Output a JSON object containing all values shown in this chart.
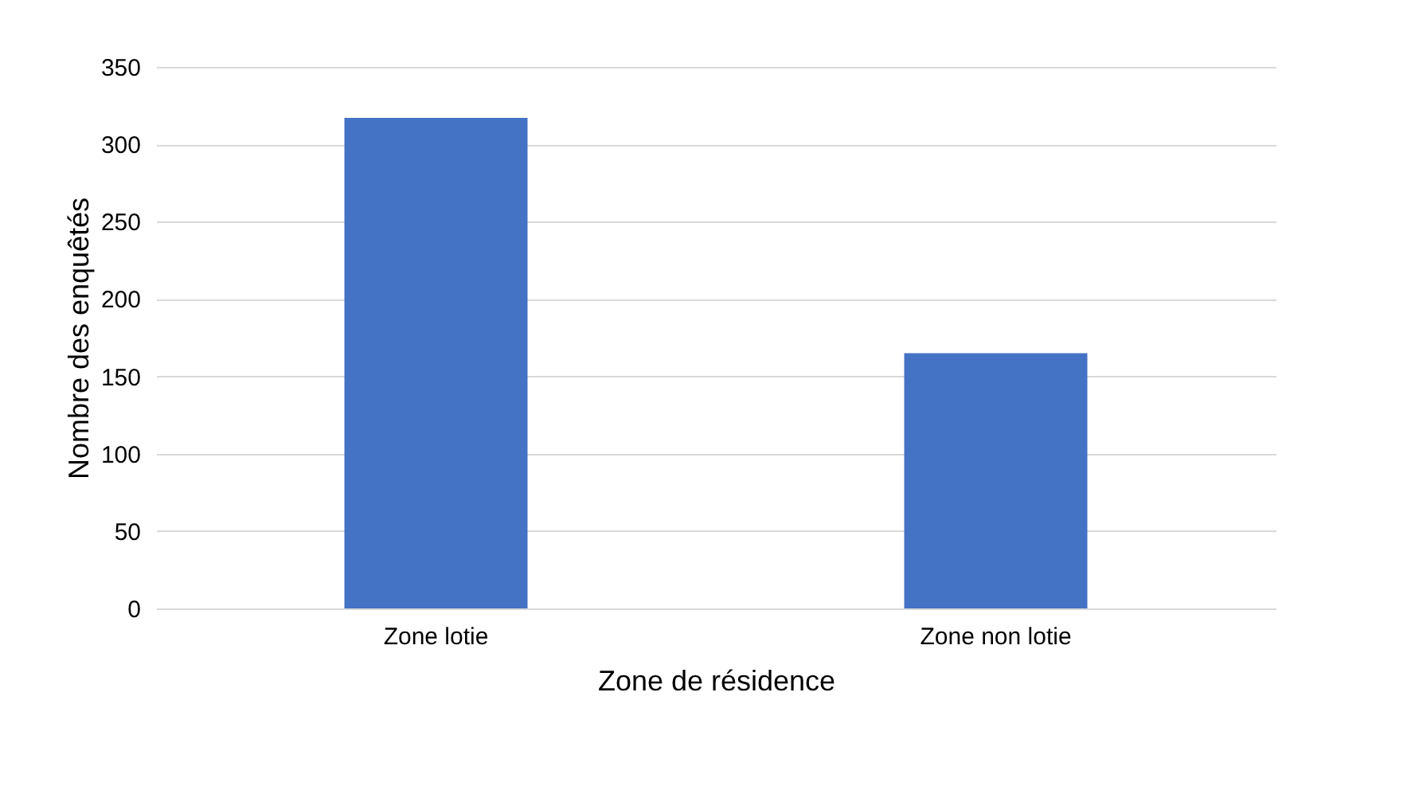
{
  "chart_data": {
    "type": "bar",
    "xlabel": "Zone de résidence",
    "ylabel": "Nombre des enquêtés",
    "categories": [
      "Zone lotie",
      "Zone non lotie"
    ],
    "values": [
      317,
      165
    ],
    "color": "#4472c4",
    "ylim": [
      0,
      350
    ],
    "yticks": [
      0,
      50,
      100,
      150,
      200,
      250,
      300,
      350
    ],
    "grid": "y"
  }
}
